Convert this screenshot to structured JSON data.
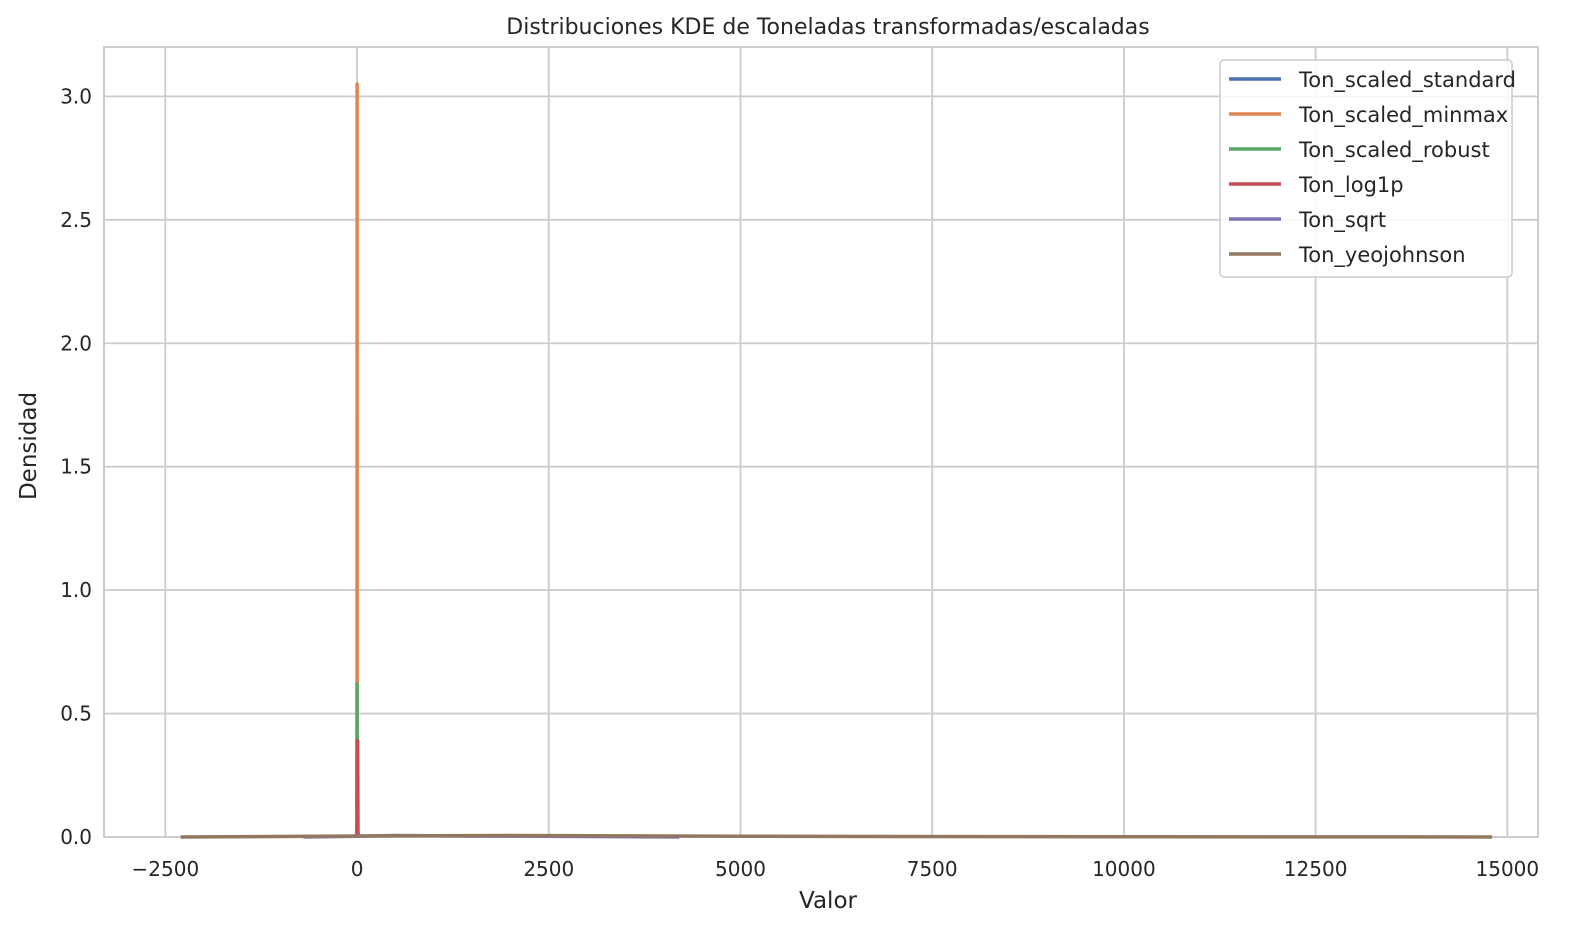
{
  "chart_data": {
    "type": "line",
    "title": "Distribuciones KDE de Toneladas transformadas/escaladas",
    "xlabel": "Valor",
    "ylabel": "Densidad",
    "xlim": [
      -3300,
      15400
    ],
    "ylim": [
      0,
      3.2
    ],
    "grid": true,
    "legend_position": "top-right",
    "x_ticks": [
      {
        "value": -2500,
        "label": "−2500"
      },
      {
        "value": 0,
        "label": "0"
      },
      {
        "value": 2500,
        "label": "2500"
      },
      {
        "value": 5000,
        "label": "5000"
      },
      {
        "value": 7500,
        "label": "7500"
      },
      {
        "value": 10000,
        "label": "10000"
      },
      {
        "value": 12500,
        "label": "12500"
      },
      {
        "value": 15000,
        "label": "15000"
      }
    ],
    "y_ticks": [
      {
        "value": 0.0,
        "label": "0.0"
      },
      {
        "value": 0.5,
        "label": "0.5"
      },
      {
        "value": 1.0,
        "label": "1.0"
      },
      {
        "value": 1.5,
        "label": "1.5"
      },
      {
        "value": 2.0,
        "label": "2.0"
      },
      {
        "value": 2.5,
        "label": "2.5"
      },
      {
        "value": 3.0,
        "label": "3.0"
      }
    ],
    "series": [
      {
        "name": "Ton_scaled_standard",
        "color": "#4c72b0",
        "x": [
          -5,
          -3,
          -1,
          0,
          1,
          3,
          5
        ],
        "y": [
          0,
          0.02,
          0.2,
          0.4,
          0.2,
          0.02,
          0
        ]
      },
      {
        "name": "Ton_scaled_minmax",
        "color": "#dd8452",
        "x": [
          0,
          0.5,
          1
        ],
        "y": [
          0,
          3.05,
          0
        ]
      },
      {
        "name": "Ton_scaled_robust",
        "color": "#55a868",
        "x": [
          -6,
          -2,
          0,
          2,
          6
        ],
        "y": [
          0,
          0.05,
          0.62,
          0.05,
          0
        ]
      },
      {
        "name": "Ton_log1p",
        "color": "#c44e52",
        "x": [
          0,
          3,
          6,
          8,
          10,
          12,
          16
        ],
        "y": [
          0,
          0.03,
          0.2,
          0.39,
          0.2,
          0.03,
          0
        ]
      },
      {
        "name": "Ton_sqrt",
        "color": "#8172b3",
        "x": [
          -700,
          0,
          500,
          1500,
          4200
        ],
        "y": [
          0,
          0.003,
          0.006,
          0.004,
          0
        ]
      },
      {
        "name": "Ton_yeojohnson",
        "color": "#937860",
        "x": [
          -2300,
          0,
          2000,
          5000,
          10000,
          14800
        ],
        "y": [
          0,
          0.004,
          0.006,
          0.003,
          0.001,
          0
        ]
      }
    ]
  }
}
